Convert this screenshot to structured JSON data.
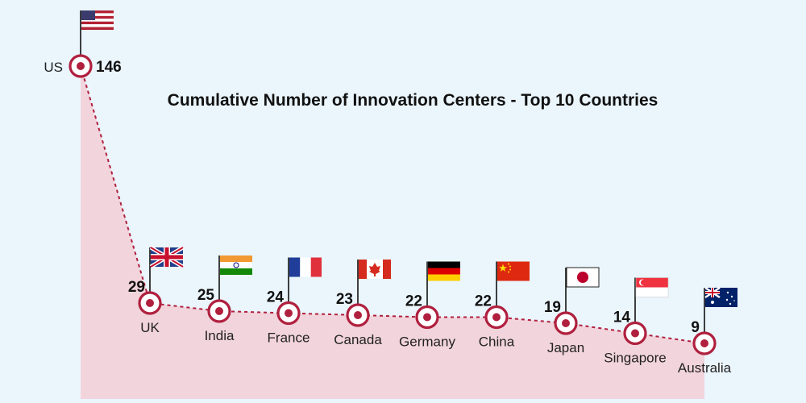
{
  "chart_data": {
    "type": "area",
    "title": "Cumulative Number of Innovation Centers - Top 10 Countries",
    "xlabel": "",
    "ylabel": "",
    "categories": [
      "US",
      "UK",
      "India",
      "France",
      "Canada",
      "Germany",
      "China",
      "Japan",
      "Singapore",
      "Australia"
    ],
    "values": [
      146,
      29,
      25,
      24,
      23,
      22,
      22,
      19,
      14,
      9
    ],
    "flags": [
      "flag-us-icon",
      "flag-uk-icon",
      "flag-india-icon",
      "flag-france-icon",
      "flag-canada-icon",
      "flag-germany-icon",
      "flag-china-icon",
      "flag-japan-icon",
      "flag-singapore-icon",
      "flag-australia-icon"
    ],
    "grid": false,
    "legend": "none"
  },
  "colors": {
    "background": "#eaf5fc",
    "area_fill": "#f2d4dc",
    "line": "#b0203e",
    "marker": "#b0203e"
  }
}
